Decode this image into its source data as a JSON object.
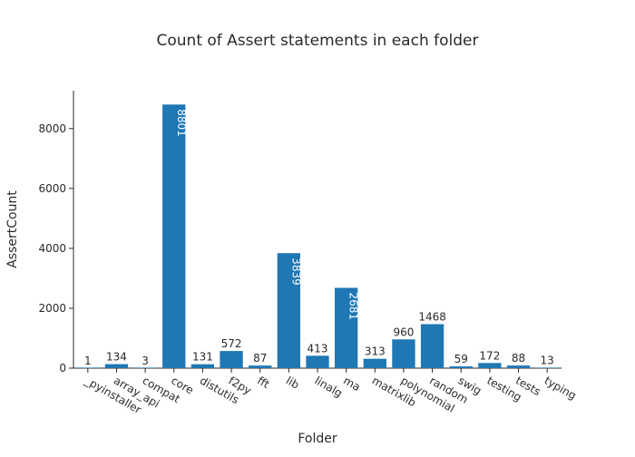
{
  "chart_data": {
    "type": "bar",
    "title": "Count of Assert statements in each folder",
    "xlabel": "Folder",
    "ylabel": "AssertCount",
    "categories": [
      "_pyinstaller",
      "array_api",
      "compat",
      "core",
      "distutils",
      "f2py",
      "fft",
      "lib",
      "linalg",
      "ma",
      "matrixlib",
      "polynomial",
      "random",
      "swig",
      "testing",
      "tests",
      "typing"
    ],
    "values": [
      1,
      134,
      3,
      8801,
      131,
      572,
      87,
      3839,
      413,
      2681,
      313,
      960,
      1468,
      59,
      172,
      88,
      13
    ],
    "ylim": [
      0,
      9264
    ],
    "yticks": [
      0,
      2000,
      4000,
      6000,
      8000
    ],
    "ytick_labels": [
      "0",
      "2000",
      "4000",
      "6000",
      "8000"
    ],
    "grid": false,
    "legend": "none",
    "bar_color": "#1f77b4",
    "inside_label_color": "#ffffff",
    "outside_label_color": "#2a2a2a"
  }
}
